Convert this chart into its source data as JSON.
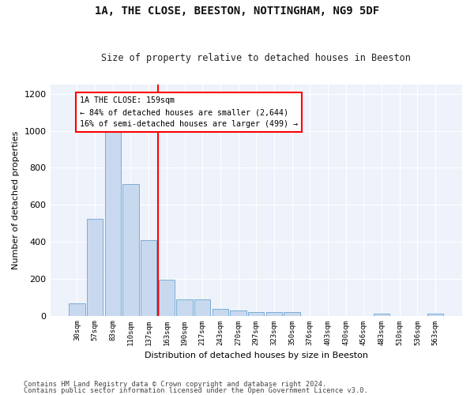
{
  "title": "1A, THE CLOSE, BEESTON, NOTTINGHAM, NG9 5DF",
  "subtitle": "Size of property relative to detached houses in Beeston",
  "xlabel": "Distribution of detached houses by size in Beeston",
  "ylabel": "Number of detached properties",
  "bar_color": "#c8d9ef",
  "bar_edge_color": "#7aadd4",
  "background_color": "#eef2fb",
  "grid_color": "#ffffff",
  "categories": [
    "30sqm",
    "57sqm",
    "83sqm",
    "110sqm",
    "137sqm",
    "163sqm",
    "190sqm",
    "217sqm",
    "243sqm",
    "270sqm",
    "297sqm",
    "323sqm",
    "350sqm",
    "376sqm",
    "403sqm",
    "430sqm",
    "456sqm",
    "483sqm",
    "510sqm",
    "536sqm",
    "563sqm"
  ],
  "values": [
    65,
    525,
    1000,
    710,
    410,
    195,
    88,
    88,
    38,
    30,
    20,
    18,
    20,
    0,
    0,
    0,
    0,
    10,
    0,
    0,
    10
  ],
  "property_line_idx": 5,
  "property_label": "1A THE CLOSE: 159sqm",
  "annotation_line1": "← 84% of detached houses are smaller (2,644)",
  "annotation_line2": "16% of semi-detached houses are larger (499) →",
  "ylim": [
    0,
    1250
  ],
  "yticks": [
    0,
    200,
    400,
    600,
    800,
    1000,
    1200
  ],
  "footnote1": "Contains HM Land Registry data © Crown copyright and database right 2024.",
  "footnote2": "Contains public sector information licensed under the Open Government Licence v3.0."
}
